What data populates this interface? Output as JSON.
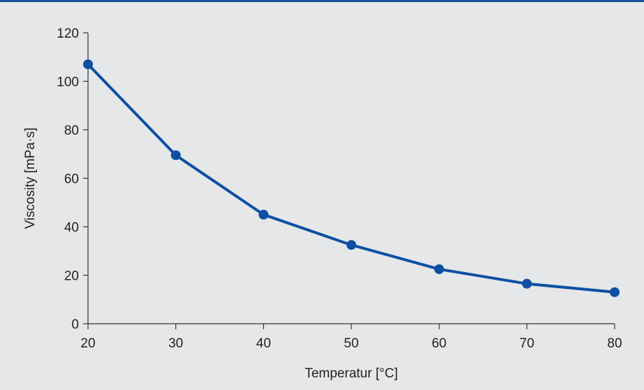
{
  "chart_data": {
    "type": "line",
    "xlabel": "Temperatur [°C]",
    "ylabel": "Viscosity [mPa·s]",
    "xlim": [
      20,
      80
    ],
    "ylim": [
      0,
      120
    ],
    "xticks": [
      20,
      30,
      40,
      50,
      60,
      70,
      80
    ],
    "yticks": [
      0,
      20,
      40,
      60,
      80,
      100,
      120
    ],
    "grid": false,
    "colors": {
      "series": "#0d4fa3",
      "axis": "#333333",
      "background": "#e6e7e9",
      "top_rule": "#1a4f9c"
    },
    "series": [
      {
        "x": [
          20,
          30,
          40,
          50,
          60,
          70,
          80
        ],
        "y": [
          107,
          69.5,
          45,
          32.5,
          22.5,
          16.5,
          13
        ]
      }
    ]
  }
}
